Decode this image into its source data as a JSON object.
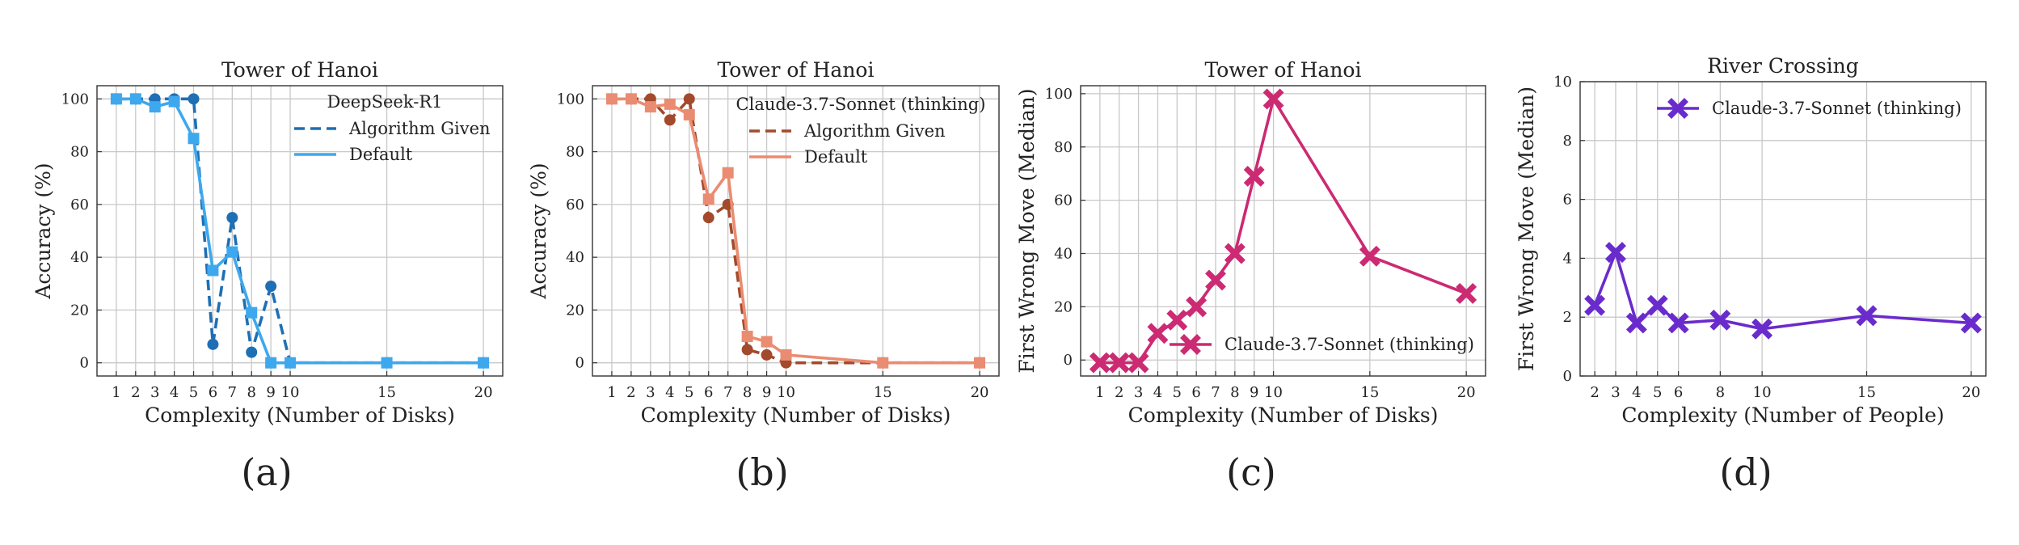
{
  "chart_data": [
    {
      "type": "line",
      "panel_label": "(a)",
      "title": "Tower of Hanoi",
      "xlabel": "Complexity (Number of Disks)",
      "ylabel": "Accuracy (%)",
      "xlim": [
        0,
        21
      ],
      "ylim": [
        -5,
        105
      ],
      "xticks": [
        1,
        2,
        3,
        4,
        5,
        6,
        7,
        8,
        9,
        10,
        15,
        20
      ],
      "yticks": [
        0,
        20,
        40,
        60,
        80,
        100
      ],
      "grid": true,
      "legend": {
        "title": "DeepSeek-R1",
        "position": "top-right"
      },
      "series": [
        {
          "name": "Algorithm Given",
          "color": "#1f6fb4",
          "dash": true,
          "marker": "circle",
          "x": [
            1,
            2,
            3,
            4,
            5,
            6,
            7,
            8,
            9,
            10,
            15,
            20
          ],
          "y": [
            100,
            100,
            100,
            100,
            100,
            7,
            55,
            4,
            29,
            0,
            0,
            0
          ]
        },
        {
          "name": "Default",
          "color": "#3ea8ee",
          "dash": false,
          "marker": "square",
          "x": [
            1,
            2,
            3,
            4,
            5,
            6,
            7,
            8,
            9,
            10,
            15,
            20
          ],
          "y": [
            100,
            100,
            97,
            99,
            85,
            35,
            42,
            19,
            0,
            0,
            0,
            0
          ]
        }
      ]
    },
    {
      "type": "line",
      "panel_label": "(b)",
      "title": "Tower of Hanoi",
      "xlabel": "Complexity (Number of Disks)",
      "ylabel": "Accuracy (%)",
      "xlim": [
        0,
        21
      ],
      "ylim": [
        -5,
        105
      ],
      "xticks": [
        1,
        2,
        3,
        4,
        5,
        6,
        7,
        8,
        9,
        10,
        15,
        20
      ],
      "yticks": [
        0,
        20,
        40,
        60,
        80,
        100
      ],
      "grid": true,
      "legend": {
        "title": "Claude-3.7-Sonnet (thinking)",
        "position": "top-right"
      },
      "series": [
        {
          "name": "Algorithm Given",
          "color": "#a34a2c",
          "dash": true,
          "marker": "circle",
          "x": [
            1,
            2,
            3,
            4,
            5,
            6,
            7,
            8,
            9,
            10,
            15,
            20
          ],
          "y": [
            100,
            100,
            100,
            92,
            100,
            55,
            60,
            5,
            3,
            0,
            0,
            0
          ]
        },
        {
          "name": "Default",
          "color": "#ea8c71",
          "dash": false,
          "marker": "square",
          "x": [
            1,
            2,
            3,
            4,
            5,
            6,
            7,
            8,
            9,
            10,
            15,
            20
          ],
          "y": [
            100,
            100,
            97,
            98,
            94,
            62,
            72,
            10,
            8,
            3,
            0,
            0
          ]
        }
      ]
    },
    {
      "type": "line",
      "panel_label": "(c)",
      "title": "Tower of Hanoi",
      "xlabel": "Complexity (Number of Disks)",
      "ylabel": "First Wrong Move (Median)",
      "xlim": [
        0,
        21
      ],
      "ylim": [
        -6,
        103
      ],
      "xticks": [
        1,
        2,
        3,
        4,
        5,
        6,
        7,
        8,
        9,
        10,
        15,
        20
      ],
      "yticks": [
        0,
        20,
        40,
        60,
        80,
        100
      ],
      "grid": true,
      "legend": {
        "title": "",
        "position": "lower-right"
      },
      "series": [
        {
          "name": "Claude-3.7-Sonnet (thinking)",
          "color": "#cc2a72",
          "dash": false,
          "marker": "x",
          "x": [
            1,
            2,
            3,
            4,
            5,
            6,
            7,
            8,
            9,
            10,
            15,
            20
          ],
          "y": [
            -1,
            -1,
            -1,
            10,
            15,
            20,
            30,
            40,
            69,
            98,
            39,
            25
          ]
        }
      ]
    },
    {
      "type": "line",
      "panel_label": "(d)",
      "title": "River Crossing",
      "xlabel": "Complexity (Number of People)",
      "ylabel": "First Wrong Move (Median)",
      "xlim": [
        1.3,
        20.7
      ],
      "ylim": [
        0,
        10
      ],
      "xticks": [
        2,
        3,
        4,
        5,
        6,
        8,
        10,
        15,
        20
      ],
      "yticks": [
        0,
        2,
        4,
        6,
        8,
        10
      ],
      "grid": true,
      "legend": {
        "title": "",
        "position": "top-right"
      },
      "series": [
        {
          "name": "Claude-3.7-Sonnet (thinking)",
          "color": "#6a2bcc",
          "dash": false,
          "marker": "x",
          "x": [
            2,
            3,
            4,
            5,
            6,
            8,
            10,
            15,
            20
          ],
          "y": [
            2.4,
            4.2,
            1.8,
            2.4,
            1.8,
            1.9,
            1.6,
            2.05,
            1.8
          ]
        }
      ]
    }
  ]
}
